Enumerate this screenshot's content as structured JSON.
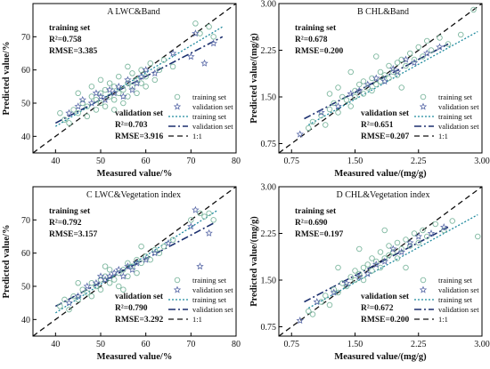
{
  "colors": {
    "training": "#7fb8a0",
    "validation": "#5a6aa8",
    "training_fit": "#1f8a9e",
    "validation_fit": "#1b2f6e",
    "one_to_one": "#111111"
  },
  "legend": {
    "training_set": "training set",
    "validation_set": "validation set",
    "training_fit": "training set",
    "validation_fit": "validation set",
    "one_to_one": "1:1"
  },
  "chart_data": [
    {
      "type": "scatter",
      "title": "A  LWC&Band",
      "xlabel": "Measured value/%",
      "ylabel": "Predicted value/%",
      "xlim": [
        35,
        80
      ],
      "ylim": [
        35,
        80
      ],
      "xticks": [
        "40",
        "50",
        "60",
        "70",
        "80"
      ],
      "yticks": [
        "40",
        "50",
        "60",
        "70"
      ],
      "training_stats": {
        "label": "training set",
        "r2": "R²=0.758",
        "rmse": "RMSE=3.385"
      },
      "validation_stats": {
        "label": "validation set",
        "r2": "R²=0.703",
        "rmse": "RMSE=3.916"
      },
      "fits": {
        "training": [
          [
            40,
            43
          ],
          [
            77,
            73
          ]
        ],
        "validation": [
          [
            40,
            44
          ],
          [
            77,
            70
          ]
        ]
      },
      "training_points": [
        [
          41,
          47
        ],
        [
          42,
          45
        ],
        [
          43,
          44
        ],
        [
          44,
          48
        ],
        [
          45,
          47
        ],
        [
          46,
          50
        ],
        [
          47,
          49
        ],
        [
          47,
          46
        ],
        [
          48,
          52
        ],
        [
          48,
          55
        ],
        [
          49,
          51
        ],
        [
          49,
          48
        ],
        [
          50,
          53
        ],
        [
          50,
          50
        ],
        [
          51,
          54
        ],
        [
          51,
          49
        ],
        [
          52,
          52
        ],
        [
          52,
          56
        ],
        [
          53,
          51
        ],
        [
          53,
          55
        ],
        [
          54,
          53
        ],
        [
          54,
          58
        ],
        [
          55,
          54
        ],
        [
          55,
          50
        ],
        [
          56,
          56
        ],
        [
          56,
          52
        ],
        [
          57,
          55
        ],
        [
          57,
          59
        ],
        [
          58,
          57
        ],
        [
          58,
          53
        ],
        [
          59,
          60
        ],
        [
          59,
          56
        ],
        [
          60,
          58
        ],
        [
          61,
          62
        ],
        [
          62,
          57
        ],
        [
          63,
          60
        ],
        [
          64,
          63
        ],
        [
          66,
          61
        ],
        [
          71,
          74
        ],
        [
          72,
          71
        ],
        [
          74,
          73
        ],
        [
          75,
          70
        ],
        [
          45,
          53
        ],
        [
          50,
          57
        ],
        [
          53,
          48
        ],
        [
          56,
          61
        ],
        [
          60,
          55
        ]
      ],
      "validation_points": [
        [
          43,
          47
        ],
        [
          45,
          49
        ],
        [
          46,
          51
        ],
        [
          48,
          50
        ],
        [
          49,
          53
        ],
        [
          50,
          52
        ],
        [
          51,
          51
        ],
        [
          52,
          54
        ],
        [
          53,
          53
        ],
        [
          54,
          55
        ],
        [
          55,
          52
        ],
        [
          56,
          57
        ],
        [
          57,
          54
        ],
        [
          58,
          56
        ],
        [
          59,
          58
        ],
        [
          60,
          60
        ],
        [
          62,
          59
        ],
        [
          66,
          65
        ],
        [
          70,
          64
        ],
        [
          71,
          71
        ],
        [
          73,
          62
        ],
        [
          75,
          68
        ]
      ]
    },
    {
      "type": "scatter",
      "title": "B  CHL&Band",
      "xlabel": "Measured value/(mg/g)",
      "ylabel": "Predicted value/(mg/g)",
      "xlim": [
        0.6,
        3.0
      ],
      "ylim": [
        0.6,
        3.0
      ],
      "xticks": [
        "0.75",
        "1.50",
        "2.25",
        "3.00"
      ],
      "yticks": [
        "0.75",
        "1.50",
        "2.25",
        "3.00"
      ],
      "training_stats": {
        "label": "training set",
        "r2": "R²=0.678",
        "rmse": "RMSE=0.200"
      },
      "validation_stats": {
        "label": "validation set",
        "r2": "R²=0.651",
        "rmse": "RMSE=0.207"
      },
      "fits": {
        "training": [
          [
            0.95,
            1.05
          ],
          [
            2.95,
            2.55
          ]
        ],
        "validation": [
          [
            0.9,
            1.15
          ],
          [
            2.6,
            2.35
          ]
        ]
      },
      "training_points": [
        [
          0.95,
          1.0
        ],
        [
          1.0,
          1.1
        ],
        [
          1.1,
          1.2
        ],
        [
          1.15,
          1.05
        ],
        [
          1.2,
          1.3
        ],
        [
          1.25,
          1.4
        ],
        [
          1.3,
          1.25
        ],
        [
          1.35,
          1.5
        ],
        [
          1.4,
          1.45
        ],
        [
          1.45,
          1.35
        ],
        [
          1.5,
          1.6
        ],
        [
          1.5,
          1.5
        ],
        [
          1.55,
          1.7
        ],
        [
          1.6,
          1.55
        ],
        [
          1.6,
          1.75
        ],
        [
          1.65,
          1.65
        ],
        [
          1.7,
          1.8
        ],
        [
          1.7,
          1.6
        ],
        [
          1.75,
          1.7
        ],
        [
          1.8,
          1.9
        ],
        [
          1.8,
          1.75
        ],
        [
          1.85,
          1.85
        ],
        [
          1.9,
          2.0
        ],
        [
          1.9,
          1.8
        ],
        [
          1.95,
          1.9
        ],
        [
          2.0,
          2.05
        ],
        [
          2.0,
          1.85
        ],
        [
          2.05,
          2.1
        ],
        [
          2.1,
          2.0
        ],
        [
          2.15,
          2.2
        ],
        [
          2.2,
          2.1
        ],
        [
          2.25,
          2.3
        ],
        [
          2.3,
          2.15
        ],
        [
          2.35,
          2.4
        ],
        [
          2.4,
          2.25
        ],
        [
          2.5,
          2.45
        ],
        [
          2.6,
          2.35
        ],
        [
          2.75,
          2.5
        ],
        [
          2.9,
          2.9
        ],
        [
          1.3,
          1.65
        ],
        [
          1.45,
          1.9
        ],
        [
          1.75,
          2.15
        ],
        [
          2.05,
          1.65
        ],
        [
          1.2,
          1.55
        ]
      ],
      "validation_points": [
        [
          0.85,
          0.9
        ],
        [
          1.1,
          1.25
        ],
        [
          1.3,
          1.35
        ],
        [
          1.45,
          1.55
        ],
        [
          1.55,
          1.6
        ],
        [
          1.65,
          1.7
        ],
        [
          1.75,
          1.8
        ],
        [
          1.85,
          1.75
        ],
        [
          1.95,
          1.95
        ],
        [
          2.0,
          1.9
        ],
        [
          2.1,
          2.1
        ],
        [
          2.2,
          2.05
        ],
        [
          2.35,
          2.2
        ],
        [
          2.5,
          2.3
        ]
      ]
    },
    {
      "type": "scatter",
      "title": "C  LWC&Vegetation index",
      "xlabel": "Measured value/%",
      "ylabel": "Predicted value/%",
      "xlim": [
        35,
        80
      ],
      "ylim": [
        35,
        80
      ],
      "xticks": [
        "40",
        "50",
        "60",
        "70",
        "80"
      ],
      "yticks": [
        "40",
        "50",
        "60",
        "70"
      ],
      "training_stats": {
        "label": "training set",
        "r2": "R²=0.792",
        "rmse": "RMSE=3.157"
      },
      "validation_stats": {
        "label": "validation set",
        "r2": "R²=0.790",
        "rmse": "RMSE=3.292"
      },
      "fits": {
        "training": [
          [
            40,
            42
          ],
          [
            76,
            73
          ]
        ],
        "validation": [
          [
            40,
            44
          ],
          [
            75,
            69
          ]
        ]
      },
      "training_points": [
        [
          41,
          44
        ],
        [
          42,
          46
        ],
        [
          43,
          43
        ],
        [
          44,
          47
        ],
        [
          45,
          46
        ],
        [
          46,
          49
        ],
        [
          47,
          48
        ],
        [
          48,
          51
        ],
        [
          48,
          47
        ],
        [
          49,
          50
        ],
        [
          50,
          52
        ],
        [
          50,
          49
        ],
        [
          51,
          53
        ],
        [
          52,
          51
        ],
        [
          52,
          55
        ],
        [
          53,
          52
        ],
        [
          54,
          54
        ],
        [
          54,
          50
        ],
        [
          55,
          55
        ],
        [
          56,
          53
        ],
        [
          56,
          57
        ],
        [
          57,
          56
        ],
        [
          58,
          58
        ],
        [
          58,
          54
        ],
        [
          59,
          57
        ],
        [
          60,
          59
        ],
        [
          61,
          58
        ],
        [
          62,
          61
        ],
        [
          63,
          60
        ],
        [
          64,
          62
        ],
        [
          66,
          64
        ],
        [
          70,
          70
        ],
        [
          72,
          72
        ],
        [
          73,
          71
        ],
        [
          74,
          72
        ],
        [
          75,
          70
        ],
        [
          45,
          51
        ],
        [
          51,
          56
        ],
        [
          55,
          49
        ],
        [
          59,
          62
        ]
      ],
      "validation_points": [
        [
          43,
          45
        ],
        [
          45,
          47
        ],
        [
          47,
          50
        ],
        [
          49,
          51
        ],
        [
          50,
          53
        ],
        [
          51,
          52
        ],
        [
          52,
          53
        ],
        [
          53,
          54
        ],
        [
          54,
          55
        ],
        [
          55,
          53
        ],
        [
          56,
          56
        ],
        [
          57,
          55
        ],
        [
          58,
          57
        ],
        [
          60,
          58
        ],
        [
          62,
          60
        ],
        [
          65,
          63
        ],
        [
          70,
          68
        ],
        [
          71,
          73
        ],
        [
          72,
          56
        ],
        [
          74,
          66
        ]
      ]
    },
    {
      "type": "scatter",
      "title": "D  CHL&Vegetation index",
      "xlabel": "Measured value/(mg/g)",
      "ylabel": "Predicted value/(mg/g)",
      "xlim": [
        0.6,
        3.0
      ],
      "ylim": [
        0.6,
        3.0
      ],
      "xticks": [
        "0.75",
        "1.50",
        "2.25",
        "3.00"
      ],
      "yticks": [
        "0.75",
        "1.50",
        "2.25",
        "3.00"
      ],
      "training_stats": {
        "label": "training set",
        "r2": "R²=0.690",
        "rmse": "RMSE=0.197"
      },
      "validation_stats": {
        "label": "validation set",
        "r2": "R²=0.672",
        "rmse": "RMSE=0.200"
      },
      "fits": {
        "training": [
          [
            0.95,
            1.05
          ],
          [
            2.95,
            2.55
          ]
        ],
        "validation": [
          [
            0.9,
            1.15
          ],
          [
            2.6,
            2.35
          ]
        ]
      },
      "training_points": [
        [
          0.95,
          1.0
        ],
        [
          1.0,
          0.95
        ],
        [
          1.1,
          1.15
        ],
        [
          1.15,
          1.25
        ],
        [
          1.2,
          1.1
        ],
        [
          1.25,
          1.35
        ],
        [
          1.3,
          1.3
        ],
        [
          1.35,
          1.45
        ],
        [
          1.4,
          1.4
        ],
        [
          1.45,
          1.55
        ],
        [
          1.5,
          1.5
        ],
        [
          1.5,
          1.65
        ],
        [
          1.55,
          1.6
        ],
        [
          1.6,
          1.7
        ],
        [
          1.6,
          1.5
        ],
        [
          1.65,
          1.75
        ],
        [
          1.7,
          1.65
        ],
        [
          1.7,
          1.85
        ],
        [
          1.75,
          1.8
        ],
        [
          1.8,
          1.7
        ],
        [
          1.8,
          1.95
        ],
        [
          1.85,
          1.85
        ],
        [
          1.9,
          1.9
        ],
        [
          1.9,
          2.05
        ],
        [
          1.95,
          1.95
        ],
        [
          2.0,
          2.1
        ],
        [
          2.0,
          1.85
        ],
        [
          2.05,
          2.0
        ],
        [
          2.1,
          2.15
        ],
        [
          2.15,
          2.05
        ],
        [
          2.2,
          2.25
        ],
        [
          2.25,
          2.1
        ],
        [
          2.3,
          2.3
        ],
        [
          2.35,
          2.2
        ],
        [
          2.45,
          2.4
        ],
        [
          2.55,
          2.3
        ],
        [
          2.65,
          2.45
        ],
        [
          2.95,
          2.2
        ],
        [
          1.3,
          1.7
        ],
        [
          1.55,
          2.0
        ],
        [
          1.85,
          2.3
        ],
        [
          2.1,
          1.7
        ]
      ],
      "validation_points": [
        [
          0.85,
          0.85
        ],
        [
          1.05,
          1.15
        ],
        [
          1.25,
          1.3
        ],
        [
          1.4,
          1.45
        ],
        [
          1.55,
          1.55
        ],
        [
          1.65,
          1.6
        ],
        [
          1.75,
          1.75
        ],
        [
          1.85,
          1.8
        ],
        [
          1.95,
          2.0
        ],
        [
          2.05,
          1.95
        ],
        [
          2.15,
          2.1
        ],
        [
          2.25,
          2.2
        ],
        [
          2.4,
          2.25
        ],
        [
          2.55,
          2.35
        ]
      ]
    }
  ]
}
